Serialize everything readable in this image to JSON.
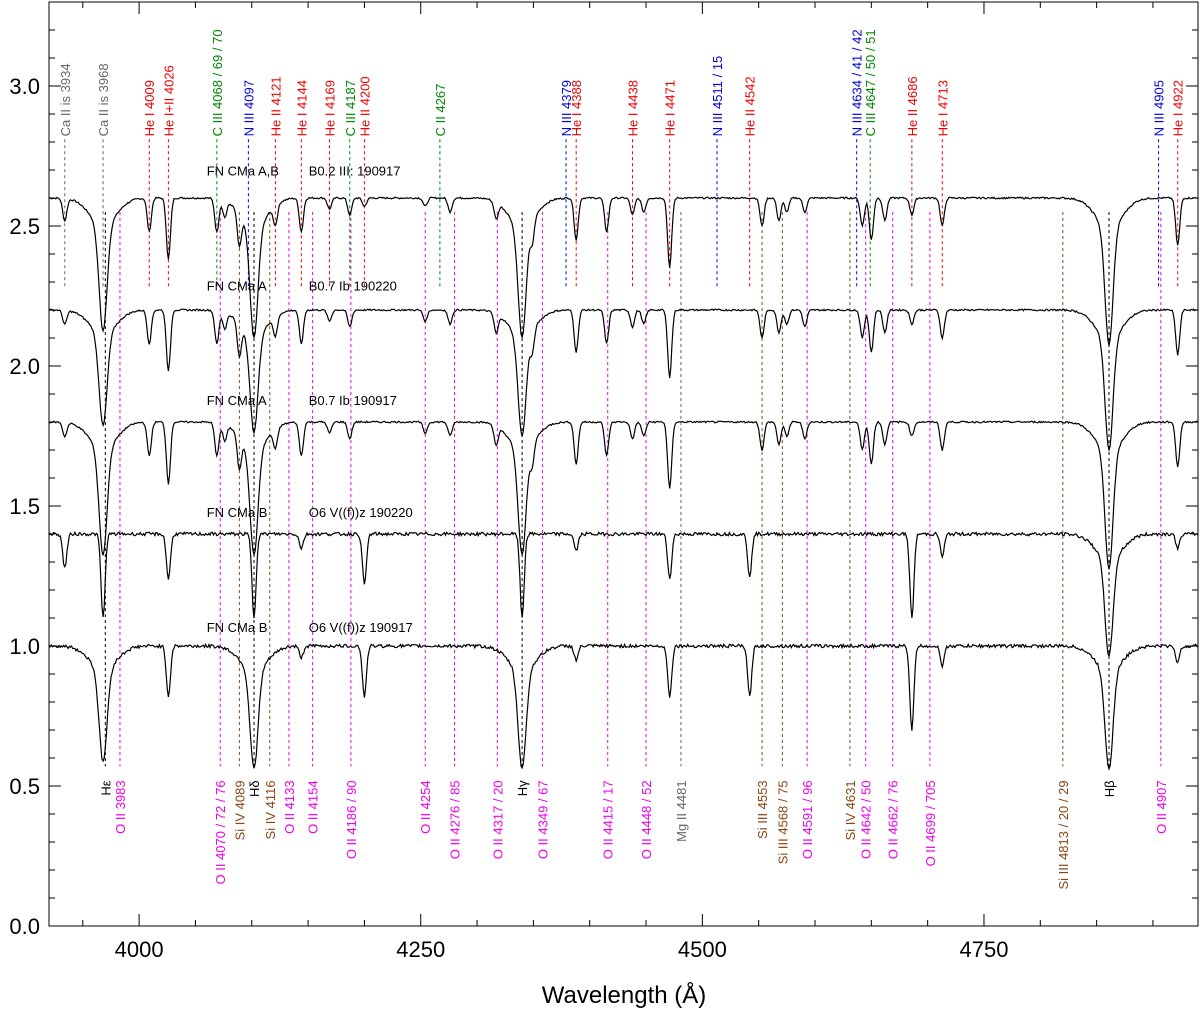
{
  "chart_data": {
    "type": "line",
    "title": "",
    "xlabel": "Wavelength (Å)",
    "ylabel": "",
    "xlim": [
      3920,
      4940
    ],
    "ylim": [
      0.0,
      3.3
    ],
    "x_ticks": [
      4000,
      4250,
      4500,
      4750
    ],
    "x_tick_labels": [
      "4000",
      "4250",
      "4500",
      "4750"
    ],
    "y_ticks": [
      0.0,
      0.5,
      1.0,
      1.5,
      2.0,
      2.5,
      3.0
    ],
    "y_tick_labels": [
      "0.0",
      "0.5",
      "1.0",
      "1.5",
      "2.0",
      "2.5",
      "3.0"
    ],
    "colors": {
      "He": "#ee0000",
      "N": "#0000dd",
      "C": "#008800",
      "O": "#ee00ee",
      "Si": "#8b4513",
      "gray": "#666666",
      "black": "#000000",
      "spectrum": "#000000"
    },
    "series": [
      {
        "name": "FN CMa A,B",
        "sptype": "B0.2 III: 190917",
        "offset": 1.6,
        "label_x": 4060,
        "label_y": 2.68,
        "lines": [
          [
            3934,
            0.08
          ],
          [
            3968,
            0.38
          ],
          [
            4009,
            0.12
          ],
          [
            4026,
            0.22
          ],
          [
            4069,
            0.12
          ],
          [
            4076,
            0.06
          ],
          [
            4089,
            0.12
          ],
          [
            4102,
            0.4
          ],
          [
            4121,
            0.07
          ],
          [
            4144,
            0.12
          ],
          [
            4169,
            0.04
          ],
          [
            4187,
            0.06
          ],
          [
            4200,
            0.03
          ],
          [
            4254,
            0.03
          ],
          [
            4276,
            0.05
          ],
          [
            4317,
            0.06
          ],
          [
            4340,
            0.4
          ],
          [
            4349,
            0.08
          ],
          [
            4388,
            0.15
          ],
          [
            4415,
            0.12
          ],
          [
            4438,
            0.06
          ],
          [
            4448,
            0.05
          ],
          [
            4471,
            0.25
          ],
          [
            4553,
            0.1
          ],
          [
            4568,
            0.08
          ],
          [
            4575,
            0.05
          ],
          [
            4591,
            0.05
          ],
          [
            4642,
            0.1
          ],
          [
            4650,
            0.15
          ],
          [
            4662,
            0.08
          ],
          [
            4686,
            0.06
          ],
          [
            4713,
            0.1
          ],
          [
            4861,
            0.42
          ],
          [
            4922,
            0.17
          ]
        ]
      },
      {
        "name": "FN CMa A",
        "sptype": "B0.7 Ib 190220",
        "offset": 1.2,
        "label_x": 4060,
        "label_y": 2.27,
        "lines": [
          [
            3934,
            0.05
          ],
          [
            3968,
            0.33
          ],
          [
            4009,
            0.12
          ],
          [
            4026,
            0.22
          ],
          [
            4069,
            0.12
          ],
          [
            4076,
            0.06
          ],
          [
            4089,
            0.12
          ],
          [
            4102,
            0.35
          ],
          [
            4121,
            0.07
          ],
          [
            4144,
            0.12
          ],
          [
            4169,
            0.04
          ],
          [
            4187,
            0.06
          ],
          [
            4254,
            0.04
          ],
          [
            4276,
            0.05
          ],
          [
            4317,
            0.07
          ],
          [
            4340,
            0.36
          ],
          [
            4349,
            0.08
          ],
          [
            4388,
            0.15
          ],
          [
            4415,
            0.12
          ],
          [
            4438,
            0.06
          ],
          [
            4448,
            0.05
          ],
          [
            4471,
            0.24
          ],
          [
            4553,
            0.1
          ],
          [
            4568,
            0.08
          ],
          [
            4575,
            0.05
          ],
          [
            4591,
            0.06
          ],
          [
            4642,
            0.1
          ],
          [
            4650,
            0.15
          ],
          [
            4662,
            0.08
          ],
          [
            4686,
            0.05
          ],
          [
            4713,
            0.1
          ],
          [
            4861,
            0.4
          ],
          [
            4922,
            0.16
          ]
        ]
      },
      {
        "name": "FN CMa A",
        "sptype": "B0.7 Ib 190917",
        "offset": 0.8,
        "label_x": 4060,
        "label_y": 1.86,
        "lines": [
          [
            3934,
            0.05
          ],
          [
            3968,
            0.38
          ],
          [
            4009,
            0.12
          ],
          [
            4026,
            0.22
          ],
          [
            4069,
            0.12
          ],
          [
            4076,
            0.06
          ],
          [
            4089,
            0.12
          ],
          [
            4102,
            0.38
          ],
          [
            4121,
            0.07
          ],
          [
            4144,
            0.12
          ],
          [
            4169,
            0.04
          ],
          [
            4187,
            0.06
          ],
          [
            4254,
            0.04
          ],
          [
            4276,
            0.05
          ],
          [
            4317,
            0.07
          ],
          [
            4340,
            0.38
          ],
          [
            4349,
            0.08
          ],
          [
            4388,
            0.15
          ],
          [
            4415,
            0.12
          ],
          [
            4438,
            0.06
          ],
          [
            4448,
            0.05
          ],
          [
            4471,
            0.24
          ],
          [
            4553,
            0.1
          ],
          [
            4568,
            0.08
          ],
          [
            4575,
            0.05
          ],
          [
            4591,
            0.06
          ],
          [
            4642,
            0.1
          ],
          [
            4650,
            0.15
          ],
          [
            4662,
            0.08
          ],
          [
            4686,
            0.05
          ],
          [
            4713,
            0.1
          ],
          [
            4861,
            0.42
          ],
          [
            4922,
            0.16
          ]
        ]
      },
      {
        "name": "FN CMa B",
        "sptype": "O6 V((f))z 190220",
        "offset": 0.4,
        "label_x": 4060,
        "label_y": 1.46,
        "lines": [
          [
            3934,
            0.12
          ],
          [
            3968,
            0.3
          ],
          [
            4026,
            0.16
          ],
          [
            4102,
            0.3
          ],
          [
            4144,
            0.05
          ],
          [
            4200,
            0.18
          ],
          [
            4340,
            0.3
          ],
          [
            4388,
            0.06
          ],
          [
            4471,
            0.16
          ],
          [
            4542,
            0.15
          ],
          [
            4686,
            0.3
          ],
          [
            4713,
            0.08
          ],
          [
            4861,
            0.35
          ],
          [
            4922,
            0.05
          ]
        ]
      },
      {
        "name": "FN CMa B",
        "sptype": "O6 V((f))z 190917",
        "offset": 0.0,
        "label_x": 4060,
        "label_y": 1.05,
        "lines": [
          [
            3968,
            0.33
          ],
          [
            4026,
            0.18
          ],
          [
            4102,
            0.35
          ],
          [
            4144,
            0.04
          ],
          [
            4200,
            0.18
          ],
          [
            4340,
            0.35
          ],
          [
            4388,
            0.05
          ],
          [
            4471,
            0.18
          ],
          [
            4542,
            0.18
          ],
          [
            4686,
            0.3
          ],
          [
            4713,
            0.07
          ],
          [
            4861,
            0.35
          ],
          [
            4922,
            0.06
          ]
        ]
      }
    ],
    "top_annotations": [
      {
        "text": "Ca II is 3934",
        "x": 3934,
        "color": "gray"
      },
      {
        "text": "Ca II is 3968",
        "x": 3968,
        "color": "gray"
      },
      {
        "text": "He I 4009",
        "x": 4009,
        "color": "He"
      },
      {
        "text": "He I+II 4026",
        "x": 4026,
        "color": "He"
      },
      {
        "text": "C III 4068 / 69 / 70",
        "x": 4069,
        "color": "C"
      },
      {
        "text": "N III 4097",
        "x": 4097,
        "color": "N"
      },
      {
        "text": "He II 4121",
        "x": 4121,
        "color": "He"
      },
      {
        "text": "He I 4144",
        "x": 4144,
        "color": "He"
      },
      {
        "text": "He I 4169",
        "x": 4169,
        "color": "He"
      },
      {
        "text": "C III 4187",
        "x": 4187,
        "color": "C"
      },
      {
        "text": "He II 4200",
        "x": 4200,
        "color": "He"
      },
      {
        "text": "C II 4267",
        "x": 4267,
        "color": "C"
      },
      {
        "text": "N III 4379",
        "x": 4379,
        "color": "N"
      },
      {
        "text": "He I 4388",
        "x": 4388,
        "color": "He"
      },
      {
        "text": "He I 4438",
        "x": 4438,
        "color": "He"
      },
      {
        "text": "He I 4471",
        "x": 4471,
        "color": "He"
      },
      {
        "text": "N III 4511 / 15",
        "x": 4513,
        "color": "N"
      },
      {
        "text": "He II 4542",
        "x": 4542,
        "color": "He"
      },
      {
        "text": "N III 4634 / 41 / 42",
        "x": 4637,
        "color": "N"
      },
      {
        "text": "C III 4647 / 50 / 51",
        "x": 4649,
        "color": "C"
      },
      {
        "text": "He II 4686",
        "x": 4686,
        "color": "He"
      },
      {
        "text": "He I 4713",
        "x": 4713,
        "color": "He"
      },
      {
        "text": "N III 4905",
        "x": 4905,
        "color": "N"
      },
      {
        "text": "He I 4922",
        "x": 4922,
        "color": "He"
      }
    ],
    "bottom_annotations": [
      {
        "text": "Hε",
        "x": 3970,
        "color": "black"
      },
      {
        "text": "O II 3983",
        "x": 3983,
        "color": "O"
      },
      {
        "text": "O II 4070 / 72 / 76",
        "x": 4072,
        "color": "O"
      },
      {
        "text": "Si IV 4089",
        "x": 4089,
        "color": "Si"
      },
      {
        "text": "Hδ",
        "x": 4102,
        "color": "black"
      },
      {
        "text": "Si IV 4116",
        "x": 4116,
        "color": "Si"
      },
      {
        "text": "O II 4133",
        "x": 4133,
        "color": "O"
      },
      {
        "text": "O II 4154",
        "x": 4154,
        "color": "O"
      },
      {
        "text": "O II 4186 / 90",
        "x": 4188,
        "color": "O"
      },
      {
        "text": "O II 4254",
        "x": 4254,
        "color": "O"
      },
      {
        "text": "O II 4276 / 85",
        "x": 4280,
        "color": "O"
      },
      {
        "text": "O II 4317 / 20",
        "x": 4318,
        "color": "O"
      },
      {
        "text": "Hγ",
        "x": 4340,
        "color": "black"
      },
      {
        "text": "O II 4349 / 67",
        "x": 4358,
        "color": "O"
      },
      {
        "text": "O II 4415 / 17",
        "x": 4416,
        "color": "O"
      },
      {
        "text": "O II 4448 / 52",
        "x": 4450,
        "color": "O"
      },
      {
        "text": "Mg II 4481",
        "x": 4481,
        "color": "gray"
      },
      {
        "text": "Si III 4553",
        "x": 4553,
        "color": "Si"
      },
      {
        "text": "Si III 4568 / 75",
        "x": 4571,
        "color": "Si"
      },
      {
        "text": "O II 4591 / 96",
        "x": 4593,
        "color": "O"
      },
      {
        "text": "Si IV 4631",
        "x": 4631,
        "color": "Si"
      },
      {
        "text": "O II 4642 / 50",
        "x": 4645,
        "color": "O"
      },
      {
        "text": "O II 4662 / 76",
        "x": 4669,
        "color": "O"
      },
      {
        "text": "O II 4699 / 705",
        "x": 4702,
        "color": "O"
      },
      {
        "text": "Si III 4813 / 20 / 29",
        "x": 4820,
        "color": "Si"
      },
      {
        "text": "Hβ",
        "x": 4861,
        "color": "black"
      },
      {
        "text": "O II 4907",
        "x": 4907,
        "color": "O"
      }
    ]
  }
}
